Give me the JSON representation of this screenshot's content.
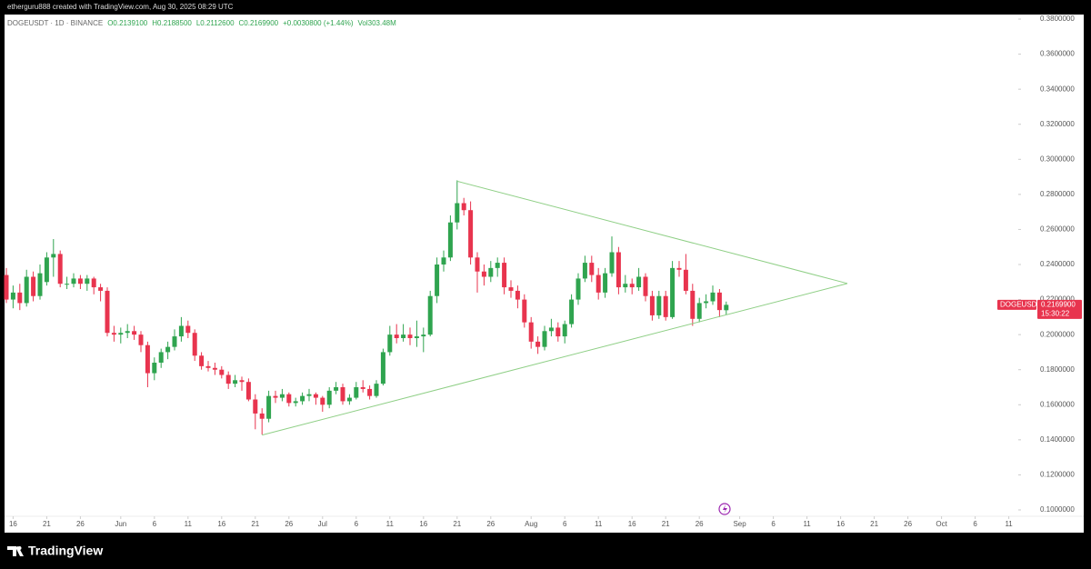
{
  "header": {
    "created_by": "etherguru888 created with TradingView.com, Aug 30, 2025 08:29 UTC"
  },
  "footer": {
    "brand": "TradingView"
  },
  "chart_data": {
    "type": "candlestick",
    "title": "DOGEUSDT · 1D · BINANCE",
    "ohlc_labels": [
      "O0.2139100",
      "H0.2188500",
      "L0.2112600",
      "C0.2169900",
      "+0.0030800 (+1.44%)",
      "Vol303.48M"
    ],
    "up_color": "#2fa44f",
    "down_color": "#e8344e",
    "trendline_color": "#8fcf86",
    "grid": false,
    "x": [
      "2025-05-15",
      "2025-05-16",
      "2025-05-17",
      "2025-05-18",
      "2025-05-19",
      "2025-05-20",
      "2025-05-21",
      "2025-05-22",
      "2025-05-23",
      "2025-05-24",
      "2025-05-25",
      "2025-05-26",
      "2025-05-27",
      "2025-05-28",
      "2025-05-29",
      "2025-05-30",
      "2025-05-31",
      "2025-06-01",
      "2025-06-02",
      "2025-06-03",
      "2025-06-04",
      "2025-06-05",
      "2025-06-06",
      "2025-06-07",
      "2025-06-08",
      "2025-06-09",
      "2025-06-10",
      "2025-06-11",
      "2025-06-12",
      "2025-06-13",
      "2025-06-14",
      "2025-06-15",
      "2025-06-16",
      "2025-06-17",
      "2025-06-18",
      "2025-06-19",
      "2025-06-20",
      "2025-06-21",
      "2025-06-22",
      "2025-06-23",
      "2025-06-24",
      "2025-06-25",
      "2025-06-26",
      "2025-06-27",
      "2025-06-28",
      "2025-06-29",
      "2025-06-30",
      "2025-07-01",
      "2025-07-02",
      "2025-07-03",
      "2025-07-04",
      "2025-07-05",
      "2025-07-06",
      "2025-07-07",
      "2025-07-08",
      "2025-07-09",
      "2025-07-10",
      "2025-07-11",
      "2025-07-12",
      "2025-07-13",
      "2025-07-14",
      "2025-07-15",
      "2025-07-16",
      "2025-07-17",
      "2025-07-18",
      "2025-07-19",
      "2025-07-20",
      "2025-07-21",
      "2025-07-22",
      "2025-07-23",
      "2025-07-24",
      "2025-07-25",
      "2025-07-26",
      "2025-07-27",
      "2025-07-28",
      "2025-07-29",
      "2025-07-30",
      "2025-07-31",
      "2025-08-01",
      "2025-08-02",
      "2025-08-03",
      "2025-08-04",
      "2025-08-05",
      "2025-08-06",
      "2025-08-07",
      "2025-08-08",
      "2025-08-09",
      "2025-08-10",
      "2025-08-11",
      "2025-08-12",
      "2025-08-13",
      "2025-08-14",
      "2025-08-15",
      "2025-08-16",
      "2025-08-17",
      "2025-08-18",
      "2025-08-19",
      "2025-08-20",
      "2025-08-21",
      "2025-08-22",
      "2025-08-23",
      "2025-08-24",
      "2025-08-25",
      "2025-08-26",
      "2025-08-27",
      "2025-08-28",
      "2025-08-29",
      "2025-08-30"
    ],
    "open": [
      0.234,
      0.22,
      0.224,
      0.218,
      0.233,
      0.222,
      0.23,
      0.244,
      0.246,
      0.229,
      0.229,
      0.232,
      0.229,
      0.232,
      0.227,
      0.225,
      0.201,
      0.2,
      0.201,
      0.202,
      0.2,
      0.194,
      0.178,
      0.184,
      0.19,
      0.193,
      0.199,
      0.205,
      0.201,
      0.188,
      0.182,
      0.181,
      0.18,
      0.177,
      0.172,
      0.174,
      0.173,
      0.163,
      0.155,
      0.152,
      0.165,
      0.164,
      0.166,
      0.161,
      0.162,
      0.165,
      0.166,
      0.164,
      0.16,
      0.168,
      0.17,
      0.162,
      0.164,
      0.17,
      0.169,
      0.165,
      0.172,
      0.19,
      0.2,
      0.198,
      0.2,
      0.198,
      0.199,
      0.2,
      0.222,
      0.24,
      0.244,
      0.264,
      0.275,
      0.271,
      0.244,
      0.236,
      0.233,
      0.238,
      0.241,
      0.227,
      0.225,
      0.22,
      0.207,
      0.196,
      0.193,
      0.202,
      0.204,
      0.199,
      0.206,
      0.22,
      0.232,
      0.241,
      0.234,
      0.224,
      0.235,
      0.247,
      0.227,
      0.229,
      0.227,
      0.233,
      0.222,
      0.211,
      0.222,
      0.21,
      0.238,
      0.237,
      0.225,
      0.209,
      0.218,
      0.219,
      0.224,
      0.21391
    ],
    "high": [
      0.238,
      0.228,
      0.229,
      0.237,
      0.236,
      0.24,
      0.247,
      0.2545,
      0.248,
      0.233,
      0.235,
      0.234,
      0.234,
      0.233,
      0.229,
      0.227,
      0.205,
      0.204,
      0.206,
      0.205,
      0.202,
      0.196,
      0.187,
      0.192,
      0.196,
      0.203,
      0.21,
      0.208,
      0.203,
      0.19,
      0.185,
      0.184,
      0.182,
      0.179,
      0.177,
      0.176,
      0.175,
      0.166,
      0.158,
      0.168,
      0.168,
      0.169,
      0.167,
      0.164,
      0.167,
      0.169,
      0.167,
      0.165,
      0.17,
      0.173,
      0.172,
      0.166,
      0.173,
      0.174,
      0.171,
      0.174,
      0.192,
      0.205,
      0.206,
      0.206,
      0.204,
      0.208,
      0.204,
      0.225,
      0.244,
      0.248,
      0.268,
      0.288,
      0.278,
      0.276,
      0.247,
      0.24,
      0.242,
      0.244,
      0.244,
      0.231,
      0.228,
      0.223,
      0.21,
      0.199,
      0.205,
      0.209,
      0.207,
      0.208,
      0.223,
      0.235,
      0.245,
      0.245,
      0.238,
      0.238,
      0.256,
      0.25,
      0.234,
      0.232,
      0.238,
      0.235,
      0.225,
      0.225,
      0.225,
      0.242,
      0.242,
      0.246,
      0.229,
      0.221,
      0.223,
      0.228,
      0.226,
      0.21885
    ],
    "low": [
      0.218,
      0.215,
      0.214,
      0.216,
      0.219,
      0.22,
      0.228,
      0.233,
      0.227,
      0.226,
      0.227,
      0.226,
      0.225,
      0.223,
      0.219,
      0.199,
      0.196,
      0.195,
      0.198,
      0.197,
      0.19,
      0.17,
      0.174,
      0.181,
      0.186,
      0.191,
      0.196,
      0.198,
      0.185,
      0.18,
      0.179,
      0.177,
      0.175,
      0.169,
      0.17,
      0.168,
      0.162,
      0.146,
      0.143,
      0.15,
      0.161,
      0.162,
      0.159,
      0.159,
      0.16,
      0.162,
      0.16,
      0.156,
      0.158,
      0.166,
      0.16,
      0.16,
      0.163,
      0.167,
      0.163,
      0.164,
      0.171,
      0.188,
      0.195,
      0.196,
      0.194,
      0.193,
      0.19,
      0.199,
      0.218,
      0.236,
      0.242,
      0.26,
      0.268,
      0.24,
      0.224,
      0.228,
      0.23,
      0.233,
      0.223,
      0.221,
      0.215,
      0.204,
      0.192,
      0.189,
      0.191,
      0.199,
      0.196,
      0.195,
      0.204,
      0.217,
      0.23,
      0.23,
      0.22,
      0.221,
      0.233,
      0.223,
      0.224,
      0.223,
      0.225,
      0.219,
      0.208,
      0.209,
      0.208,
      0.209,
      0.233,
      0.223,
      0.205,
      0.207,
      0.215,
      0.217,
      0.21,
      0.21126
    ],
    "close": [
      0.22,
      0.224,
      0.218,
      0.233,
      0.222,
      0.235,
      0.244,
      0.246,
      0.229,
      0.229,
      0.232,
      0.229,
      0.232,
      0.227,
      0.225,
      0.201,
      0.2,
      0.201,
      0.202,
      0.2,
      0.194,
      0.178,
      0.184,
      0.19,
      0.193,
      0.199,
      0.205,
      0.201,
      0.188,
      0.182,
      0.181,
      0.18,
      0.177,
      0.172,
      0.174,
      0.173,
      0.163,
      0.155,
      0.152,
      0.165,
      0.164,
      0.166,
      0.161,
      0.162,
      0.165,
      0.166,
      0.164,
      0.16,
      0.168,
      0.17,
      0.162,
      0.164,
      0.17,
      0.169,
      0.165,
      0.172,
      0.19,
      0.2,
      0.198,
      0.2,
      0.198,
      0.199,
      0.2,
      0.222,
      0.24,
      0.244,
      0.264,
      0.275,
      0.271,
      0.244,
      0.236,
      0.233,
      0.238,
      0.241,
      0.227,
      0.225,
      0.22,
      0.207,
      0.196,
      0.193,
      0.202,
      0.204,
      0.199,
      0.206,
      0.22,
      0.232,
      0.241,
      0.234,
      0.224,
      0.235,
      0.247,
      0.227,
      0.229,
      0.227,
      0.233,
      0.222,
      0.211,
      0.222,
      0.21,
      0.238,
      0.237,
      0.225,
      0.209,
      0.218,
      0.219,
      0.224,
      0.214,
      0.21699
    ],
    "trendlines": [
      {
        "x": [
          "2025-07-21",
          "2025-09-17"
        ],
        "y": [
          0.2875,
          0.2292
        ]
      },
      {
        "x": [
          "2025-06-22",
          "2025-09-17"
        ],
        "y": [
          0.1427,
          0.2292
        ]
      }
    ],
    "xlim": [
      "2025-05-15",
      "2025-10-12"
    ],
    "xticks": [
      {
        "value": "2025-05-16",
        "label": "16"
      },
      {
        "value": "2025-05-21",
        "label": "21"
      },
      {
        "value": "2025-05-26",
        "label": "26"
      },
      {
        "value": "2025-06-01",
        "label": "Jun"
      },
      {
        "value": "2025-06-06",
        "label": "6"
      },
      {
        "value": "2025-06-11",
        "label": "11"
      },
      {
        "value": "2025-06-16",
        "label": "16"
      },
      {
        "value": "2025-06-21",
        "label": "21"
      },
      {
        "value": "2025-06-26",
        "label": "26"
      },
      {
        "value": "2025-07-01",
        "label": "Jul"
      },
      {
        "value": "2025-07-06",
        "label": "6"
      },
      {
        "value": "2025-07-11",
        "label": "11"
      },
      {
        "value": "2025-07-16",
        "label": "16"
      },
      {
        "value": "2025-07-21",
        "label": "21"
      },
      {
        "value": "2025-07-26",
        "label": "26"
      },
      {
        "value": "2025-08-01",
        "label": "Aug"
      },
      {
        "value": "2025-08-06",
        "label": "6"
      },
      {
        "value": "2025-08-11",
        "label": "11"
      },
      {
        "value": "2025-08-16",
        "label": "16"
      },
      {
        "value": "2025-08-21",
        "label": "21"
      },
      {
        "value": "2025-08-26",
        "label": "26"
      },
      {
        "value": "2025-09-01",
        "label": "Sep"
      },
      {
        "value": "2025-09-06",
        "label": "6"
      },
      {
        "value": "2025-09-11",
        "label": "11"
      },
      {
        "value": "2025-09-16",
        "label": "16"
      },
      {
        "value": "2025-09-21",
        "label": "21"
      },
      {
        "value": "2025-09-26",
        "label": "26"
      },
      {
        "value": "2025-10-01",
        "label": "Oct"
      },
      {
        "value": "2025-10-06",
        "label": "6"
      },
      {
        "value": "2025-10-11",
        "label": "11"
      }
    ],
    "ylim": [
      0.1,
      0.38
    ],
    "yticks": [
      {
        "value": 0.38,
        "label": "0.3800000"
      },
      {
        "value": 0.36,
        "label": "0.3600000"
      },
      {
        "value": 0.34,
        "label": "0.3400000"
      },
      {
        "value": 0.32,
        "label": "0.3200000"
      },
      {
        "value": 0.3,
        "label": "0.3000000"
      },
      {
        "value": 0.28,
        "label": "0.2800000"
      },
      {
        "value": 0.26,
        "label": "0.2600000"
      },
      {
        "value": 0.24,
        "label": "0.2400000"
      },
      {
        "value": 0.22,
        "label": "0.2200000"
      },
      {
        "value": 0.2,
        "label": "0.2000000"
      },
      {
        "value": 0.18,
        "label": "0.1800000"
      },
      {
        "value": 0.16,
        "label": "0.1600000"
      },
      {
        "value": 0.14,
        "label": "0.1400000"
      },
      {
        "value": 0.12,
        "label": "0.1200000"
      },
      {
        "value": 0.1,
        "label": "0.1000000"
      }
    ],
    "price_tag": {
      "symbol": "DOGEUSDT",
      "price": {
        "value": 0.21699,
        "label": "0.2169900"
      },
      "countdown": "15:30:22",
      "color": "#e8344e"
    }
  }
}
